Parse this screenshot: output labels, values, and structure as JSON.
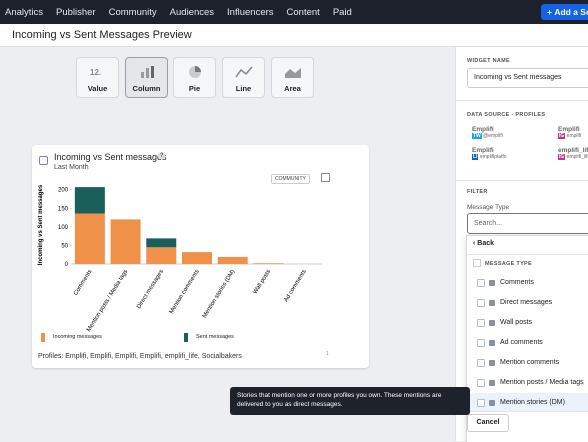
{
  "nav": {
    "items": [
      "Analytics",
      "Publisher",
      "Community",
      "Audiences",
      "Influencers",
      "Content",
      "Paid"
    ],
    "button": "Add a Soci"
  },
  "header": {
    "title": "Incoming vs Sent Messages Preview"
  },
  "widget_types": {
    "value_icon": "12.",
    "items": [
      "Value",
      "Column",
      "Pie",
      "Line",
      "Area"
    ]
  },
  "widget": {
    "title": "Incoming vs Sent messages",
    "help": "?",
    "subtitle": "Last Month",
    "tag": "COMMUNITY",
    "profiles": "Profiles: Emplifi, Emplifi, Emplifi, Emplifi, emplifi_life, Socialbakers",
    "badge": "1"
  },
  "chart_data": {
    "type": "bar",
    "stacked": true,
    "y_label": "Incoming vs Sent messages",
    "categories": [
      "Comments",
      "Mention posts / Media tags",
      "Direct messages",
      "Mention comments",
      "Mention stories (DM)",
      "Wall posts",
      "Ad comments"
    ],
    "series": [
      {
        "name": "Incoming messages",
        "color": "#f0914a",
        "values": [
          136,
          120,
          45,
          32,
          19,
          2,
          0
        ]
      },
      {
        "name": "Sent messages",
        "color": "#1a5f5a",
        "values": [
          71,
          0,
          24,
          0,
          0,
          0,
          0
        ]
      }
    ],
    "ylim": [
      0,
      210
    ],
    "yticks": [
      0,
      50,
      100,
      150,
      200
    ],
    "grid": false
  },
  "panel": {
    "widget_name_label": "WIDGET NAME",
    "widget_name": "Incoming vs Sent messages",
    "data_source_label": "DATA SOURCE - PROFILES",
    "profiles": [
      {
        "name": "Emplifi",
        "tag": "TW",
        "handle": "@emplifi"
      },
      {
        "name": "Emplifi",
        "tag": "IG",
        "handle": "emplifi"
      },
      {
        "name": "Emplifi",
        "tag": "LI",
        "handle": "emplifiplatfo"
      },
      {
        "name": "emplifi_life",
        "tag": "IG",
        "handle": "emplifi_life"
      }
    ],
    "filter_label": "FILTER",
    "message_type_label": "Message Type",
    "search": "Search...",
    "back": "Back",
    "list_header": "MESSAGE TYPE",
    "options": [
      "Comments",
      "Direct messages",
      "Wall posts",
      "Ad comments",
      "Mention comments",
      "Mention posts / Media tags",
      "Mention stories (DM)"
    ],
    "cancel": "Cancel"
  },
  "tooltip": "Stories that mention one or more profiles you own. These mentions are delivered to you as direct messages."
}
